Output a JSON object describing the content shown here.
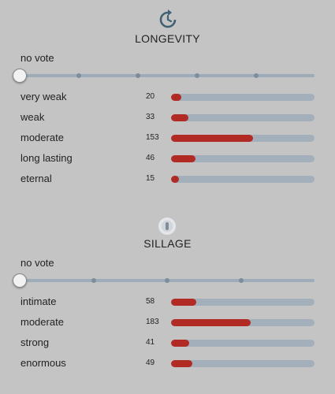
{
  "colors": {
    "background": "#c4c4c4",
    "track": "#a3afbb",
    "fill": "#b22a24",
    "icon": "#3f6173"
  },
  "longevity": {
    "title": "LONGEVITY",
    "icon": "clock-rewind-icon",
    "vote_label": "no vote",
    "slider_value": 0,
    "rows": [
      {
        "label": "very weak",
        "count": "20",
        "fill": 0.07
      },
      {
        "label": "weak",
        "count": "33",
        "fill": 0.12
      },
      {
        "label": "moderate",
        "count": "153",
        "fill": 0.57
      },
      {
        "label": "long lasting",
        "count": "46",
        "fill": 0.17
      },
      {
        "label": "eternal",
        "count": "15",
        "fill": 0.055
      }
    ]
  },
  "sillage": {
    "title": "SILLAGE",
    "icon": "sillage-icon",
    "vote_label": "no vote",
    "slider_value": 0,
    "rows": [
      {
        "label": "intimate",
        "count": "58",
        "fill": 0.175
      },
      {
        "label": "moderate",
        "count": "183",
        "fill": 0.555
      },
      {
        "label": "strong",
        "count": "41",
        "fill": 0.125
      },
      {
        "label": "enormous",
        "count": "49",
        "fill": 0.15
      }
    ]
  }
}
